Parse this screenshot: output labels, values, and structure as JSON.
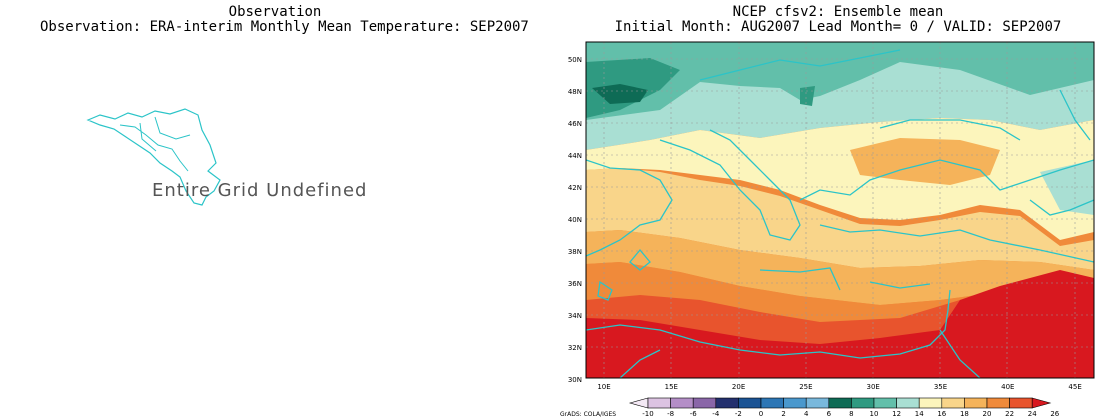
{
  "left_panel": {
    "title_line1": "Observation",
    "title_line2": "Observation: ERA-interim Monthly Mean Temperature: SEP2007",
    "message": "Entire Grid Undefined"
  },
  "right_panel": {
    "title_line1": "NCEP cfsv2: Ensemble mean",
    "title_line2": "Initial Month: AUG2007  Lead Month= 0 / VALID: SEP2007",
    "lon_labels": [
      "10E",
      "15E",
      "20E",
      "25E",
      "30E",
      "35E",
      "40E",
      "45E"
    ],
    "lat_labels": [
      "50N",
      "48N",
      "46N",
      "44N",
      "42N",
      "40N",
      "38N",
      "36N",
      "34N",
      "32N",
      "30N"
    ]
  },
  "colorbar": {
    "credit": "GrADS: COLA/IGES",
    "ticks": [
      "-10",
      "-8",
      "-6",
      "-4",
      "-2",
      "0",
      "2",
      "4",
      "6",
      "8",
      "10",
      "12",
      "14",
      "16",
      "18",
      "20",
      "22",
      "24",
      "26"
    ],
    "colors": [
      "#f4e9f5",
      "#dcc3e2",
      "#b48ec7",
      "#8a66a8",
      "#23306e",
      "#1a5394",
      "#2c76b5",
      "#4a98cd",
      "#79b8dc",
      "#0e6b55",
      "#2f9a81",
      "#62bfaa",
      "#a9dfd3",
      "#fcf5bc",
      "#f9d58a",
      "#f5b35a",
      "#f08a3a",
      "#e8542d",
      "#d8181f"
    ]
  },
  "chart_data": {
    "type": "heatmap",
    "title": "NCEP cfsv2: Ensemble mean",
    "subtitle": "Initial Month: AUG2007  Lead Month= 0 / VALID: SEP2007",
    "x_range": [
      8,
      46
    ],
    "y_range": [
      30,
      51
    ],
    "contour_levels": [
      -10,
      -8,
      -6,
      -4,
      -2,
      0,
      2,
      4,
      6,
      8,
      10,
      12,
      14,
      16,
      18,
      20,
      22,
      24,
      26
    ]
  }
}
